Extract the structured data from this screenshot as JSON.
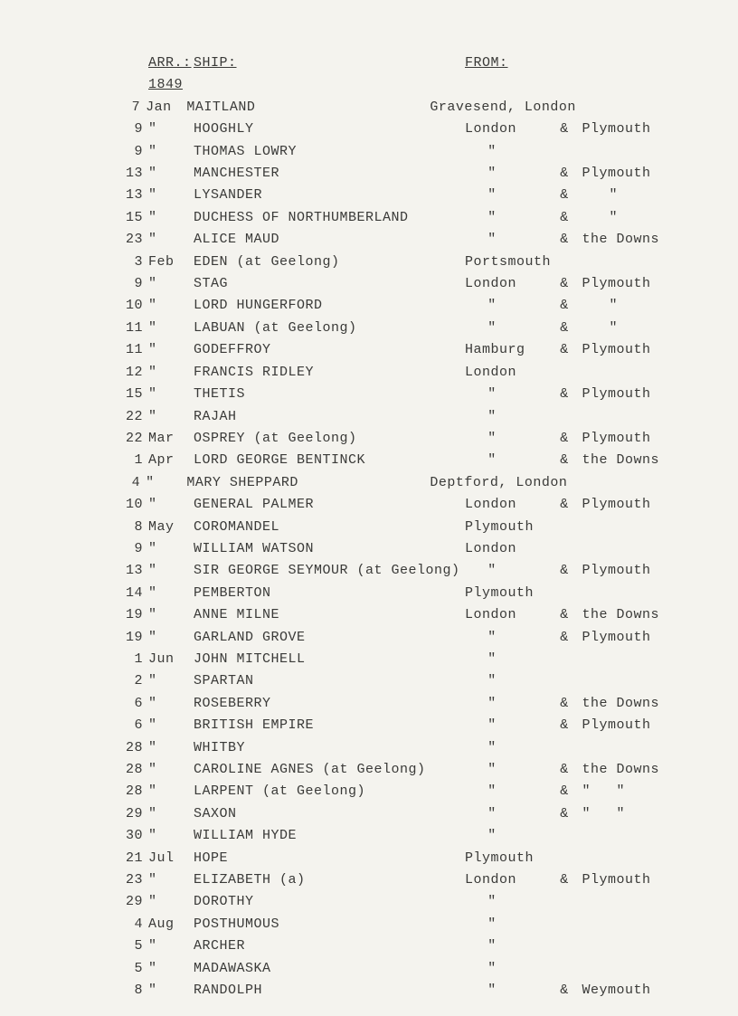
{
  "headers": {
    "arr": "ARR.:",
    "ship": "SHIP:",
    "from": "FROM:"
  },
  "year": "1849",
  "rows": [
    {
      "day": "7",
      "mon": "Jan",
      "ship": "MAITLAND",
      "f1": "Gravesend, London",
      "amp": "",
      "f2": ""
    },
    {
      "day": "9",
      "mon": "\"",
      "ship": "HOOGHLY",
      "f1": "London",
      "amp": "&",
      "f2": "Plymouth"
    },
    {
      "day": "9",
      "mon": "\"",
      "ship": "THOMAS LOWRY",
      "f1": "\"",
      "amp": "",
      "f2": ""
    },
    {
      "day": "13",
      "mon": "\"",
      "ship": "MANCHESTER",
      "f1": "\"",
      "amp": "&",
      "f2": "Plymouth"
    },
    {
      "day": "13",
      "mon": "\"",
      "ship": "LYSANDER",
      "f1": "\"",
      "amp": "&",
      "f2": "\""
    },
    {
      "day": "15",
      "mon": "\"",
      "ship": "DUCHESS OF NORTHUMBERLAND",
      "f1": "\"",
      "amp": "&",
      "f2": "\""
    },
    {
      "day": "23",
      "mon": "\"",
      "ship": "ALICE MAUD",
      "f1": "\"",
      "amp": "&",
      "f2": "the Downs"
    },
    {
      "day": "3",
      "mon": "Feb",
      "ship": "EDEN (at Geelong)",
      "f1": "Portsmouth",
      "amp": "",
      "f2": ""
    },
    {
      "day": "9",
      "mon": "\"",
      "ship": "STAG",
      "f1": "London",
      "amp": "&",
      "f2": "Plymouth"
    },
    {
      "day": "10",
      "mon": "\"",
      "ship": "LORD HUNGERFORD",
      "f1": "\"",
      "amp": "&",
      "f2": "\""
    },
    {
      "day": "11",
      "mon": "\"",
      "ship": "LABUAN (at Geelong)",
      "f1": "\"",
      "amp": "&",
      "f2": "\""
    },
    {
      "day": "11",
      "mon": "\"",
      "ship": "GODEFFROY",
      "f1": "Hamburg",
      "amp": "&",
      "f2": "Plymouth"
    },
    {
      "day": "12",
      "mon": "\"",
      "ship": "FRANCIS RIDLEY",
      "f1": "London",
      "amp": "",
      "f2": ""
    },
    {
      "day": "15",
      "mon": "\"",
      "ship": "THETIS",
      "f1": "\"",
      "amp": "&",
      "f2": "Plymouth"
    },
    {
      "day": "22",
      "mon": "\"",
      "ship": "RAJAH",
      "f1": "\"",
      "amp": "",
      "f2": ""
    },
    {
      "day": "22",
      "mon": "Mar",
      "ship": "OSPREY (at Geelong)",
      "f1": "\"",
      "amp": "&",
      "f2": "Plymouth"
    },
    {
      "day": "1",
      "mon": "Apr",
      "ship": "LORD GEORGE BENTINCK",
      "f1": "\"",
      "amp": "&",
      "f2": "the Downs"
    },
    {
      "day": "4",
      "mon": "\"",
      "ship": "MARY SHEPPARD",
      "f1": "Deptford, London",
      "amp": "",
      "f2": ""
    },
    {
      "day": "10",
      "mon": "\"",
      "ship": "GENERAL PALMER",
      "f1": "London",
      "amp": "&",
      "f2": "Plymouth"
    },
    {
      "day": "8",
      "mon": "May",
      "ship": "COROMANDEL",
      "f1": "Plymouth",
      "amp": "",
      "f2": ""
    },
    {
      "day": "9",
      "mon": "\"",
      "ship": "WILLIAM WATSON",
      "f1": "London",
      "amp": "",
      "f2": ""
    },
    {
      "day": "13",
      "mon": "\"",
      "ship": "SIR GEORGE SEYMOUR (at Geelong)",
      "f1": "\"",
      "amp": "&",
      "f2": "Plymouth"
    },
    {
      "day": "14",
      "mon": "\"",
      "ship": "PEMBERTON",
      "f1": "Plymouth",
      "amp": "",
      "f2": ""
    },
    {
      "day": "19",
      "mon": "\"",
      "ship": "ANNE MILNE",
      "f1": "London",
      "amp": "&",
      "f2": "the Downs"
    },
    {
      "day": "19",
      "mon": "\"",
      "ship": "GARLAND GROVE",
      "f1": "\"",
      "amp": "&",
      "f2": "Plymouth"
    },
    {
      "day": "1",
      "mon": "Jun",
      "ship": "JOHN MITCHELL",
      "f1": "\"",
      "amp": "",
      "f2": ""
    },
    {
      "day": "2",
      "mon": "\"",
      "ship": "SPARTAN",
      "f1": "\"",
      "amp": "",
      "f2": ""
    },
    {
      "day": "6",
      "mon": "\"",
      "ship": "ROSEBERRY",
      "f1": "\"",
      "amp": "&",
      "f2": "the Downs"
    },
    {
      "day": "6",
      "mon": "\"",
      "ship": "BRITISH EMPIRE",
      "f1": "\"",
      "amp": "&",
      "f2": "Plymouth"
    },
    {
      "day": "28",
      "mon": "\"",
      "ship": "WHITBY",
      "f1": "\"",
      "amp": "",
      "f2": ""
    },
    {
      "day": "28",
      "mon": "\"",
      "ship": "CAROLINE AGNES (at Geelong)",
      "f1": "\"",
      "amp": "&",
      "f2": "the Downs"
    },
    {
      "day": "28",
      "mon": "\"",
      "ship": "LARPENT (at Geelong)",
      "f1": "\"",
      "amp": "&",
      "f2": "\"   \""
    },
    {
      "day": "29",
      "mon": "\"",
      "ship": "SAXON",
      "f1": "\"",
      "amp": "&",
      "f2": "\"   \""
    },
    {
      "day": "30",
      "mon": "\"",
      "ship": "WILLIAM HYDE",
      "f1": "\"",
      "amp": "",
      "f2": ""
    },
    {
      "day": "21",
      "mon": "Jul",
      "ship": "HOPE",
      "f1": "Plymouth",
      "amp": "",
      "f2": ""
    },
    {
      "day": "23",
      "mon": "\"",
      "ship": "ELIZABETH (a)",
      "f1": "London",
      "amp": "&",
      "f2": "Plymouth"
    },
    {
      "day": "29",
      "mon": "\"",
      "ship": "DOROTHY",
      "f1": "\"",
      "amp": "",
      "f2": ""
    },
    {
      "day": "4",
      "mon": "Aug",
      "ship": "POSTHUMOUS",
      "f1": "\"",
      "amp": "",
      "f2": ""
    },
    {
      "day": "5",
      "mon": "\"",
      "ship": "ARCHER",
      "f1": "\"",
      "amp": "",
      "f2": ""
    },
    {
      "day": "5",
      "mon": "\"",
      "ship": "MADAWASKA",
      "f1": "\"",
      "amp": "",
      "f2": ""
    },
    {
      "day": "8",
      "mon": "\"",
      "ship": "RANDOLPH",
      "f1": "\"",
      "amp": "&",
      "f2": "Weymouth"
    }
  ]
}
